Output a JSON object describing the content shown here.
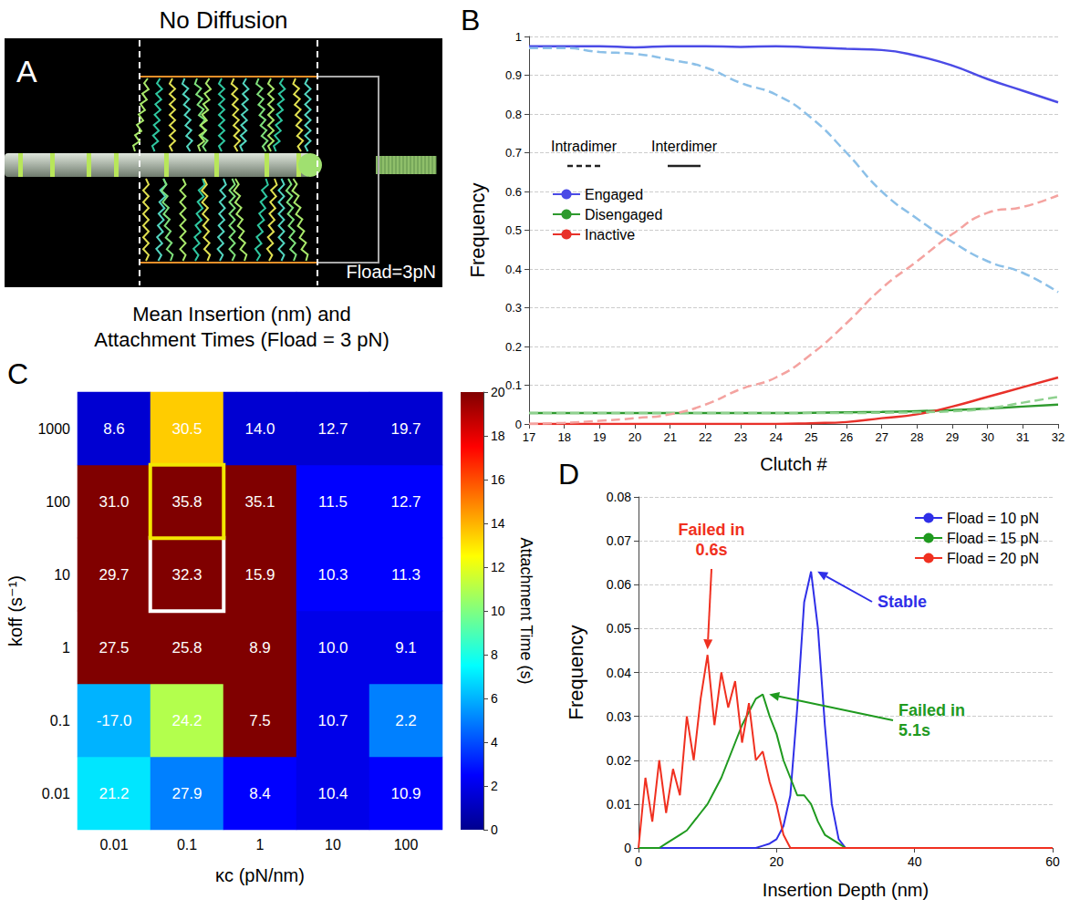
{
  "chart_data": [
    {
      "panel": "A",
      "type": "diagram",
      "title": "No Diffusion",
      "annotations": [
        "Fload=3pN"
      ]
    },
    {
      "panel": "B",
      "type": "line",
      "x_label": "Clutch #",
      "y_label": "Frequency",
      "categories": [
        17,
        18,
        19,
        20,
        21,
        22,
        23,
        24,
        25,
        26,
        27,
        28,
        29,
        30,
        31,
        32
      ],
      "ylim": [
        0,
        1
      ],
      "yticks": [
        0,
        0.1,
        0.2,
        0.3,
        0.4,
        0.5,
        0.6,
        0.7,
        0.8,
        0.9,
        1
      ],
      "grid": true,
      "legend": "left",
      "annotations": [
        {
          "text": "Intradimer",
          "line_style": "dashed"
        },
        {
          "text": "Interdimer",
          "line_style": "solid"
        }
      ],
      "series": [
        {
          "name": "Engaged",
          "color": "#4b4be6",
          "line_style": "solid",
          "values": [
            0.975,
            0.975,
            0.975,
            0.972,
            0.975,
            0.975,
            0.973,
            0.975,
            0.972,
            0.968,
            0.965,
            0.95,
            0.925,
            0.89,
            0.86,
            0.83
          ]
        },
        {
          "name": "Disengaged",
          "color": "#2e9a2e",
          "line_style": "solid",
          "values": [
            0.028,
            0.028,
            0.028,
            0.028,
            0.028,
            0.028,
            0.028,
            0.028,
            0.029,
            0.03,
            0.031,
            0.033,
            0.036,
            0.04,
            0.045,
            0.05
          ]
        },
        {
          "name": "Inactive",
          "color": "#e8312a",
          "line_style": "solid",
          "values": [
            0,
            0,
            0,
            0,
            0,
            0,
            0,
            0,
            0.002,
            0.005,
            0.015,
            0.025,
            0.045,
            0.07,
            0.095,
            0.12
          ]
        },
        {
          "name": "Engaged",
          "color": "#8cc0e8",
          "line_style": "dashed",
          "values": [
            0.97,
            0.97,
            0.96,
            0.955,
            0.94,
            0.92,
            0.88,
            0.85,
            0.79,
            0.7,
            0.6,
            0.53,
            0.47,
            0.42,
            0.39,
            0.34
          ]
        },
        {
          "name": "Disengaged",
          "color": "#8fd18f",
          "line_style": "dashed",
          "values": [
            0.028,
            0.028,
            0.028,
            0.028,
            0.028,
            0.028,
            0.028,
            0.028,
            0.028,
            0.028,
            0.029,
            0.03,
            0.033,
            0.04,
            0.055,
            0.07
          ]
        },
        {
          "name": "Inactive",
          "color": "#f4a3a0",
          "line_style": "dashed",
          "values": [
            0,
            0.003,
            0.008,
            0.015,
            0.025,
            0.05,
            0.09,
            0.12,
            0.18,
            0.26,
            0.35,
            0.42,
            0.49,
            0.545,
            0.56,
            0.59
          ]
        }
      ]
    },
    {
      "panel": "C",
      "type": "heatmap",
      "title": "Mean Insertion (nm) and Attachment Times (Fload = 3 pN)",
      "x_label": "κc (pN/nm)",
      "y_label": "koff (s⁻¹)",
      "x": [
        "0.01",
        "0.1",
        "1",
        "10",
        "100"
      ],
      "y": [
        "0.01",
        "0.1",
        "1",
        "10",
        "100",
        "1000"
      ],
      "attachment_times": [
        [
          7,
          5,
          2.5,
          2,
          2.5
        ],
        [
          6,
          11,
          20,
          2,
          5
        ],
        [
          20,
          20,
          20,
          2,
          2
        ],
        [
          20,
          20,
          20,
          2.5,
          2.5
        ],
        [
          20,
          20,
          20,
          2.5,
          2.5
        ],
        [
          1.5,
          13.5,
          1.5,
          1.5,
          1.5
        ]
      ],
      "mean_insertion": [
        [
          21.2,
          27.9,
          8.4,
          10.4,
          10.9
        ],
        [
          -17.0,
          24.2,
          7.5,
          10.7,
          2.2
        ],
        [
          27.5,
          25.8,
          8.9,
          10.0,
          9.1
        ],
        [
          29.7,
          32.3,
          15.9,
          10.3,
          11.3
        ],
        [
          31.0,
          35.8,
          35.1,
          11.5,
          12.7
        ],
        [
          8.6,
          30.5,
          14.0,
          12.7,
          19.7
        ]
      ],
      "mean_insertion_labels": [
        [
          "21.2",
          "27.9",
          "8.4",
          "10.4",
          "10.9"
        ],
        [
          "-17.0",
          "24.2",
          "7.5",
          "10.7",
          "2.2"
        ],
        [
          "27.5",
          "25.8",
          "8.9",
          "10.0",
          "9.1"
        ],
        [
          "29.7",
          "32.3",
          "15.9",
          "10.3",
          "11.3"
        ],
        [
          "31.0",
          "35.8",
          "35.1",
          "11.5",
          "12.7"
        ],
        [
          "8.6",
          "30.5",
          "14.0",
          "12.7",
          "19.7"
        ]
      ],
      "data_labels": true,
      "colorbar": {
        "label": "Attachment Time (s)",
        "range": [
          0,
          20
        ],
        "ticks": [
          0,
          2,
          4,
          6,
          8,
          10,
          12,
          14,
          16,
          18,
          20
        ]
      },
      "highlights": [
        {
          "x": "0.1",
          "y": "100",
          "color": "#f2e600"
        },
        {
          "x": "0.1",
          "y": "10",
          "color": "#ffffff"
        }
      ]
    },
    {
      "panel": "D",
      "type": "line",
      "x_label": "Insertion Depth (nm)",
      "y_label": "Frequency",
      "x": [
        0,
        1,
        2,
        3,
        4,
        5,
        6,
        7,
        8,
        9,
        10,
        11,
        12,
        13,
        14,
        15,
        16,
        17,
        18,
        19,
        20,
        21,
        22,
        23,
        24,
        25,
        26,
        27,
        28,
        29,
        30,
        31,
        32,
        33,
        34,
        35,
        36,
        37,
        38,
        39,
        40,
        41,
        42,
        43,
        44,
        45,
        46,
        47,
        48,
        49,
        50,
        51,
        52,
        53,
        54,
        55,
        56,
        57,
        58,
        59,
        60
      ],
      "xlim": [
        0,
        60
      ],
      "xticks": [
        0,
        20,
        40,
        60
      ],
      "ylim": [
        0,
        0.08
      ],
      "yticks": [
        0,
        0.01,
        0.02,
        0.03,
        0.04,
        0.05,
        0.06,
        0.07,
        0.08
      ],
      "grid": true,
      "legend": "right",
      "series": [
        {
          "name": "Fload = 10 pN",
          "color": "#2f2fe8",
          "values": [
            0,
            0,
            0,
            0,
            0,
            0,
            0,
            0,
            0,
            0,
            0,
            0,
            0,
            0,
            0,
            0,
            0,
            0,
            0.0005,
            0.001,
            0.002,
            0.005,
            0.012,
            0.032,
            0.056,
            0.063,
            0.05,
            0.028,
            0.01,
            0.002,
            0,
            0,
            0,
            0,
            0,
            0,
            0,
            0,
            0,
            0,
            0,
            0,
            0,
            0,
            0,
            0,
            0,
            0,
            0,
            0,
            0,
            0,
            0,
            0,
            0,
            0,
            0,
            0,
            0,
            0,
            0
          ]
        },
        {
          "name": "Fload = 15 pN",
          "color": "#1f9a1f",
          "values": [
            0,
            0,
            0,
            0,
            0.001,
            0.002,
            0.003,
            0.004,
            0.006,
            0.008,
            0.01,
            0.013,
            0.016,
            0.02,
            0.024,
            0.028,
            0.031,
            0.034,
            0.035,
            0.03,
            0.026,
            0.02,
            0.016,
            0.012,
            0.012,
            0.01,
            0.006,
            0.003,
            0.002,
            0.001,
            0,
            0,
            0,
            0,
            0,
            0,
            0,
            0,
            0,
            0,
            0,
            0,
            0,
            0,
            0,
            0,
            0,
            0,
            0,
            0,
            0,
            0,
            0,
            0,
            0,
            0,
            0,
            0,
            0,
            0,
            0
          ]
        },
        {
          "name": "Fload = 20 pN",
          "color": "#f03020",
          "values": [
            0,
            0.016,
            0.006,
            0.02,
            0.008,
            0.018,
            0.012,
            0.03,
            0.02,
            0.034,
            0.044,
            0.028,
            0.04,
            0.032,
            0.038,
            0.024,
            0.033,
            0.02,
            0.022,
            0.015,
            0.01,
            0.003,
            0,
            0,
            0,
            0,
            0,
            0,
            0,
            0,
            0,
            0,
            0,
            0,
            0,
            0,
            0,
            0,
            0,
            0,
            0,
            0,
            0,
            0,
            0,
            0,
            0,
            0,
            0,
            0,
            0,
            0,
            0,
            0,
            0,
            0,
            0,
            0,
            0,
            0,
            0
          ]
        }
      ],
      "annotations": [
        {
          "text": "Failed in 0.6s",
          "series": "Fload = 20 pN"
        },
        {
          "text": "Stable",
          "series": "Fload = 10 pN"
        },
        {
          "text": "Failed in 5.1s",
          "series": "Fload = 15 pN"
        }
      ]
    }
  ]
}
